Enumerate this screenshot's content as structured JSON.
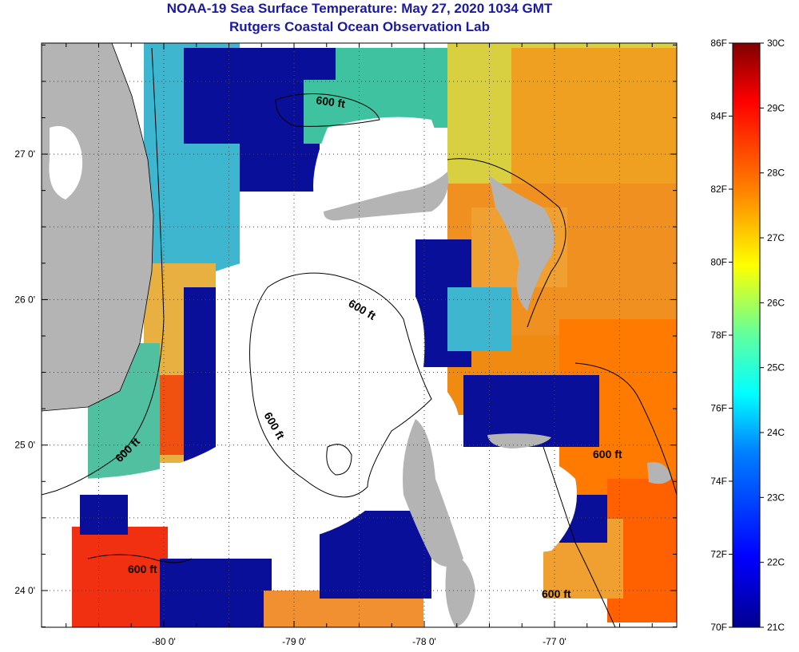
{
  "title_line1": "NOAA-19 Sea Surface Temperature:  May 27, 2020 1034 GMT",
  "title_line2": "Rutgers Coastal Ocean Observation Lab",
  "map": {
    "lat_ticks": [
      {
        "label": "27 0'",
        "value": 27.0
      },
      {
        "label": "26 0'",
        "value": 26.0
      },
      {
        "label": "25 0'",
        "value": 25.0
      },
      {
        "label": "24 0'",
        "value": 24.0
      }
    ],
    "lon_ticks": [
      {
        "label": "-80 0'",
        "value": -80.0
      },
      {
        "label": "-79 0'",
        "value": -79.0
      },
      {
        "label": "-78 0'",
        "value": -78.0
      },
      {
        "label": "-77 0'",
        "value": -77.0
      }
    ],
    "isobath_label": "600 ft",
    "land_color": "#b4b4b4",
    "cloud_color": "#ffffff"
  },
  "colorbar": {
    "fahrenheit_labels": [
      "86F",
      "84F",
      "82F",
      "80F",
      "78F",
      "76F",
      "74F",
      "72F",
      "70F"
    ],
    "celsius_labels": [
      "30C",
      "29C",
      "28C",
      "27C",
      "26C",
      "25C",
      "24C",
      "23C",
      "22C",
      "21C"
    ],
    "range_f": [
      70,
      86
    ],
    "range_c": [
      21,
      30
    ]
  }
}
